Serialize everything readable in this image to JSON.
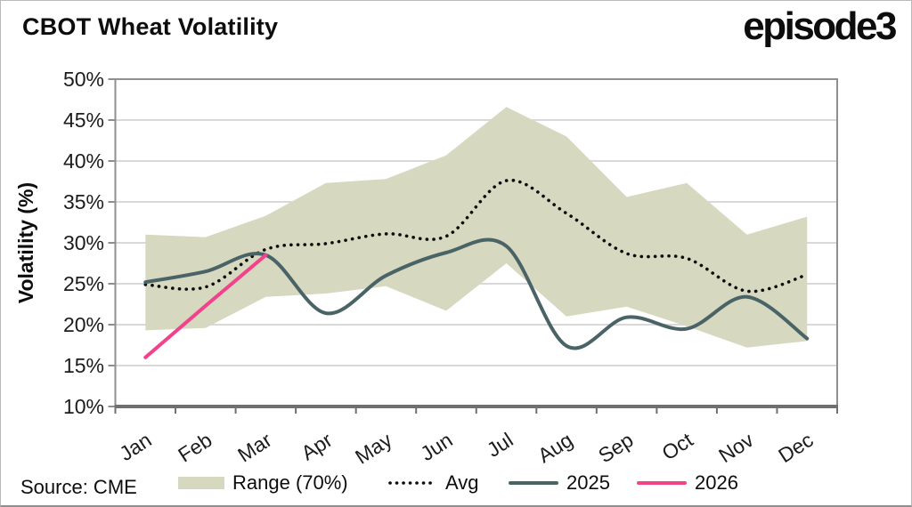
{
  "header": {
    "title": "CBOT Wheat Volatility",
    "logo": "episode3"
  },
  "source": {
    "label": "Source: CME"
  },
  "y_axis": {
    "title": "Volatility (%)",
    "ticks": [
      "50%",
      "45%",
      "40%",
      "35%",
      "30%",
      "25%",
      "20%",
      "15%",
      "10%"
    ]
  },
  "legend": {
    "items": [
      {
        "label": "Range (70%)",
        "type": "band",
        "color": "#d7d8c0"
      },
      {
        "label": "Avg",
        "type": "dotted-line",
        "color": "#0d0d0d"
      },
      {
        "label": "2025",
        "type": "line",
        "color": "#4a6366"
      },
      {
        "label": "2026",
        "type": "line",
        "color": "#f2428c"
      }
    ]
  },
  "chart_data": {
    "type": "line",
    "title": "CBOT Wheat Volatility",
    "xlabel": "",
    "ylabel": "Volatility (%)",
    "ylim": [
      10,
      50
    ],
    "y_tick_step": 5,
    "grid": "horizontal",
    "legend_position": "bottom",
    "categories": [
      "Jan",
      "Feb",
      "Mar",
      "Apr",
      "May",
      "Jun",
      "Jul",
      "Aug",
      "Sep",
      "Oct",
      "Nov",
      "Dec"
    ],
    "series": [
      {
        "name": "Range (70%)",
        "type": "band",
        "color": "#d7d8c0",
        "upper": [
          31.0,
          30.7,
          33.3,
          37.3,
          37.8,
          40.7,
          46.6,
          43.0,
          35.6,
          37.3,
          31.0,
          33.2
        ],
        "lower": [
          19.3,
          19.6,
          23.4,
          23.8,
          24.7,
          21.7,
          27.5,
          21.0,
          22.2,
          19.8,
          17.2,
          18.0
        ]
      },
      {
        "name": "Avg",
        "type": "dotted-line",
        "color": "#0d0d0d",
        "values": [
          24.9,
          24.6,
          29.2,
          29.9,
          31.1,
          30.8,
          37.6,
          33.6,
          28.7,
          28.1,
          24.1,
          26.1
        ]
      },
      {
        "name": "2025",
        "type": "line",
        "color": "#4a6366",
        "values": [
          25.2,
          26.5,
          28.5,
          21.4,
          26.0,
          28.8,
          29.6,
          17.4,
          20.9,
          19.5,
          23.4,
          18.3
        ]
      },
      {
        "name": "2026",
        "type": "line",
        "color": "#f2428c",
        "values": [
          16.0,
          22.3,
          28.5
        ]
      }
    ],
    "axis_colors": {
      "gridline": "#d9d9d9",
      "box": "#8f8f8f",
      "bottom_axis": "#6f6f6f"
    }
  }
}
